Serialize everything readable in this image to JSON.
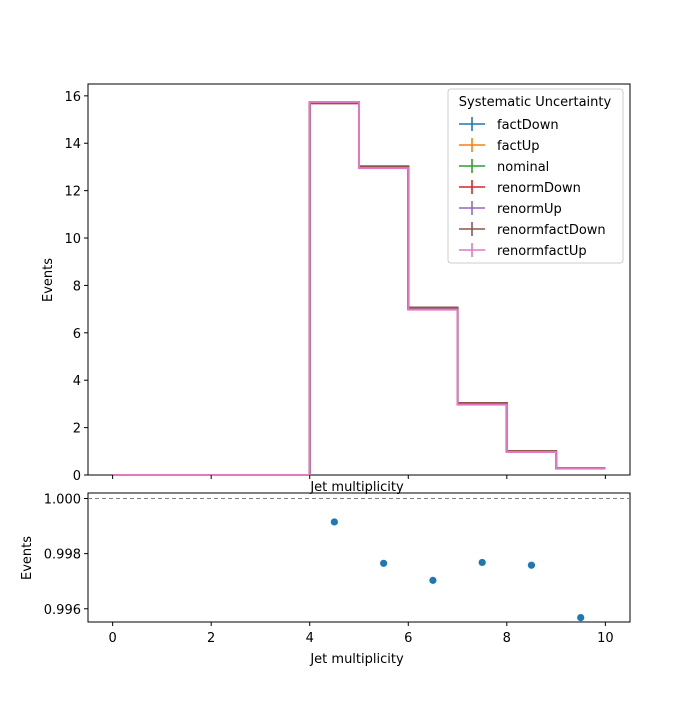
{
  "chart_data": [
    {
      "type": "histogram-step",
      "title": "",
      "xlabel": "Jet multiplicity",
      "ylabel": "Events",
      "xlim": [
        -0.5,
        10.5
      ],
      "ylim": [
        0,
        16.5
      ],
      "xticks": [
        0,
        2,
        4,
        6,
        8,
        10
      ],
      "yticks": [
        0,
        2,
        4,
        6,
        8,
        10,
        12,
        14,
        16
      ],
      "bin_edges": [
        0,
        1,
        2,
        3,
        4,
        5,
        6,
        7,
        8,
        9,
        10
      ],
      "legend_title": "Systematic Uncertainty",
      "legend_position": "top-right",
      "series": [
        {
          "name": "factDown",
          "color": "#1f77b4",
          "values": [
            0,
            0,
            0,
            0,
            15.7,
            13.0,
            7.05,
            3.02,
            1.0,
            0.28
          ]
        },
        {
          "name": "factUp",
          "color": "#ff7f0e",
          "values": [
            0,
            0,
            0,
            0,
            15.72,
            12.97,
            7.0,
            3.0,
            0.98,
            0.28
          ]
        },
        {
          "name": "nominal",
          "color": "#2ca02c",
          "values": [
            0,
            0,
            0,
            0,
            15.72,
            13.0,
            7.03,
            3.02,
            1.0,
            0.28
          ]
        },
        {
          "name": "renormDown",
          "color": "#d62728",
          "values": [
            0,
            0,
            0,
            0,
            15.7,
            13.02,
            7.05,
            3.03,
            1.0,
            0.28
          ]
        },
        {
          "name": "renormUp",
          "color": "#9467bd",
          "values": [
            0,
            0,
            0,
            0,
            15.72,
            12.98,
            7.0,
            2.99,
            0.98,
            0.28
          ]
        },
        {
          "name": "renormfactDown",
          "color": "#8c564b",
          "values": [
            0,
            0,
            0,
            0,
            15.68,
            13.03,
            7.07,
            3.04,
            1.01,
            0.28
          ]
        },
        {
          "name": "renormfactUp",
          "color": "#e377c2",
          "values": [
            0,
            0,
            0,
            0,
            15.74,
            12.95,
            6.98,
            2.97,
            0.97,
            0.27
          ]
        }
      ]
    },
    {
      "type": "scatter",
      "title": "Jet multiplicity",
      "xlabel": "Jet multiplicity",
      "ylabel": "Events",
      "xlim": [
        -0.5,
        10.5
      ],
      "ylim": [
        0.99552,
        1.0002
      ],
      "xticks": [
        0,
        2,
        4,
        6,
        8,
        10
      ],
      "yticks": [
        0.996,
        0.998,
        1.0
      ],
      "ytick_labels": [
        "0.996",
        "0.998",
        "1.000"
      ],
      "reference_line": 1.0,
      "color": "#1f77b4",
      "x": [
        4.5,
        5.5,
        6.5,
        7.5,
        8.5,
        9.5
      ],
      "y": [
        0.99915,
        0.99765,
        0.99703,
        0.99768,
        0.99758,
        0.99568
      ]
    }
  ]
}
